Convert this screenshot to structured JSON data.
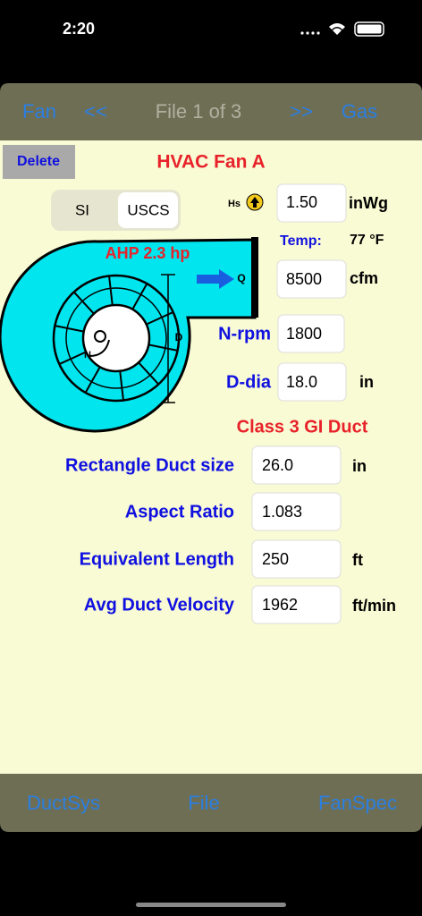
{
  "status_bar": {
    "time": "2:20"
  },
  "nav": {
    "left": "Fan",
    "prev": "<<",
    "file": "File 1 of 3",
    "next": ">>",
    "right": "Gas"
  },
  "toolbar": {
    "delete": "Delete",
    "title": "HVAC Fan A",
    "units": [
      "SI",
      "USCS"
    ]
  },
  "diagram": {
    "hs": "Hs",
    "power": "AHP 2.3 hp",
    "q": "Q",
    "d": "D",
    "n": "N"
  },
  "fan": {
    "pressure": {
      "value": "1.50",
      "unit": "inWg"
    },
    "temperature": {
      "label": "Temp:",
      "value": "77 °F"
    },
    "flow": {
      "value": "8500",
      "unit": "cfm"
    },
    "speed": {
      "label": "N-rpm",
      "value": "1800"
    },
    "diameter": {
      "label": "D-dia",
      "value": "18.0",
      "unit": "in"
    }
  },
  "duct": {
    "title": "Class 3 GI Duct",
    "rows": [
      {
        "label": "Rectangle Duct size",
        "value": "26.0",
        "unit": "in"
      },
      {
        "label": "Aspect Ratio",
        "value": "1.083"
      },
      {
        "label": "Equivalent Length",
        "value": "250",
        "unit": "ft"
      },
      {
        "label": "Avg Duct Velocity",
        "value": "1962",
        "unit": "ft/min"
      }
    ]
  },
  "tabs": [
    "DuctSys",
    "File",
    "FanSpec"
  ]
}
